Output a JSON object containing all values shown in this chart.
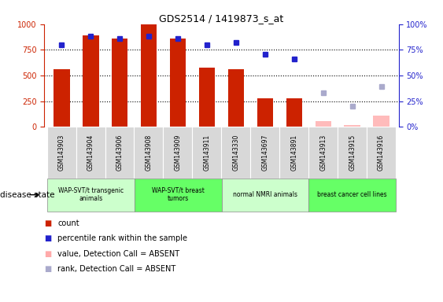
{
  "title": "GDS2514 / 1419873_s_at",
  "samples": [
    "GSM143903",
    "GSM143904",
    "GSM143906",
    "GSM143908",
    "GSM143909",
    "GSM143911",
    "GSM143330",
    "GSM143697",
    "GSM143891",
    "GSM143913",
    "GSM143915",
    "GSM143916"
  ],
  "count_values": [
    560,
    890,
    860,
    1000,
    860,
    580,
    560,
    275,
    280,
    null,
    null,
    null
  ],
  "count_absent_values": [
    null,
    null,
    null,
    null,
    null,
    null,
    null,
    null,
    null,
    55,
    20,
    110
  ],
  "rank_values": [
    80,
    88,
    86,
    88,
    86,
    80,
    82,
    71,
    66,
    null,
    null,
    null
  ],
  "rank_absent_values": [
    null,
    null,
    null,
    null,
    null,
    null,
    null,
    null,
    null,
    33,
    20,
    39
  ],
  "groups": [
    {
      "label": "WAP-SVT/t transgenic\nanimals",
      "start": 0,
      "end": 3,
      "color": "#ccffcc"
    },
    {
      "label": "WAP-SVT/t breast\ntumors",
      "start": 3,
      "end": 6,
      "color": "#66ff66"
    },
    {
      "label": "normal NMRI animals",
      "start": 6,
      "end": 9,
      "color": "#ccffcc"
    },
    {
      "label": "breast cancer cell lines",
      "start": 9,
      "end": 12,
      "color": "#66ff66"
    }
  ],
  "bar_color": "#cc2200",
  "bar_absent_color": "#ffbbbb",
  "dot_color": "#2222cc",
  "dot_absent_color": "#aaaacc",
  "ylim_left": [
    0,
    1000
  ],
  "ylim_right": [
    0,
    100
  ],
  "yticks_left": [
    0,
    250,
    500,
    750,
    1000
  ],
  "yticks_right": [
    0,
    25,
    50,
    75,
    100
  ],
  "background_color": "#ffffff",
  "legend_items": [
    {
      "label": "count",
      "color": "#cc2200"
    },
    {
      "label": "percentile rank within the sample",
      "color": "#2222cc"
    },
    {
      "label": "value, Detection Call = ABSENT",
      "color": "#ffaaaa"
    },
    {
      "label": "rank, Detection Call = ABSENT",
      "color": "#aaaacc"
    }
  ]
}
